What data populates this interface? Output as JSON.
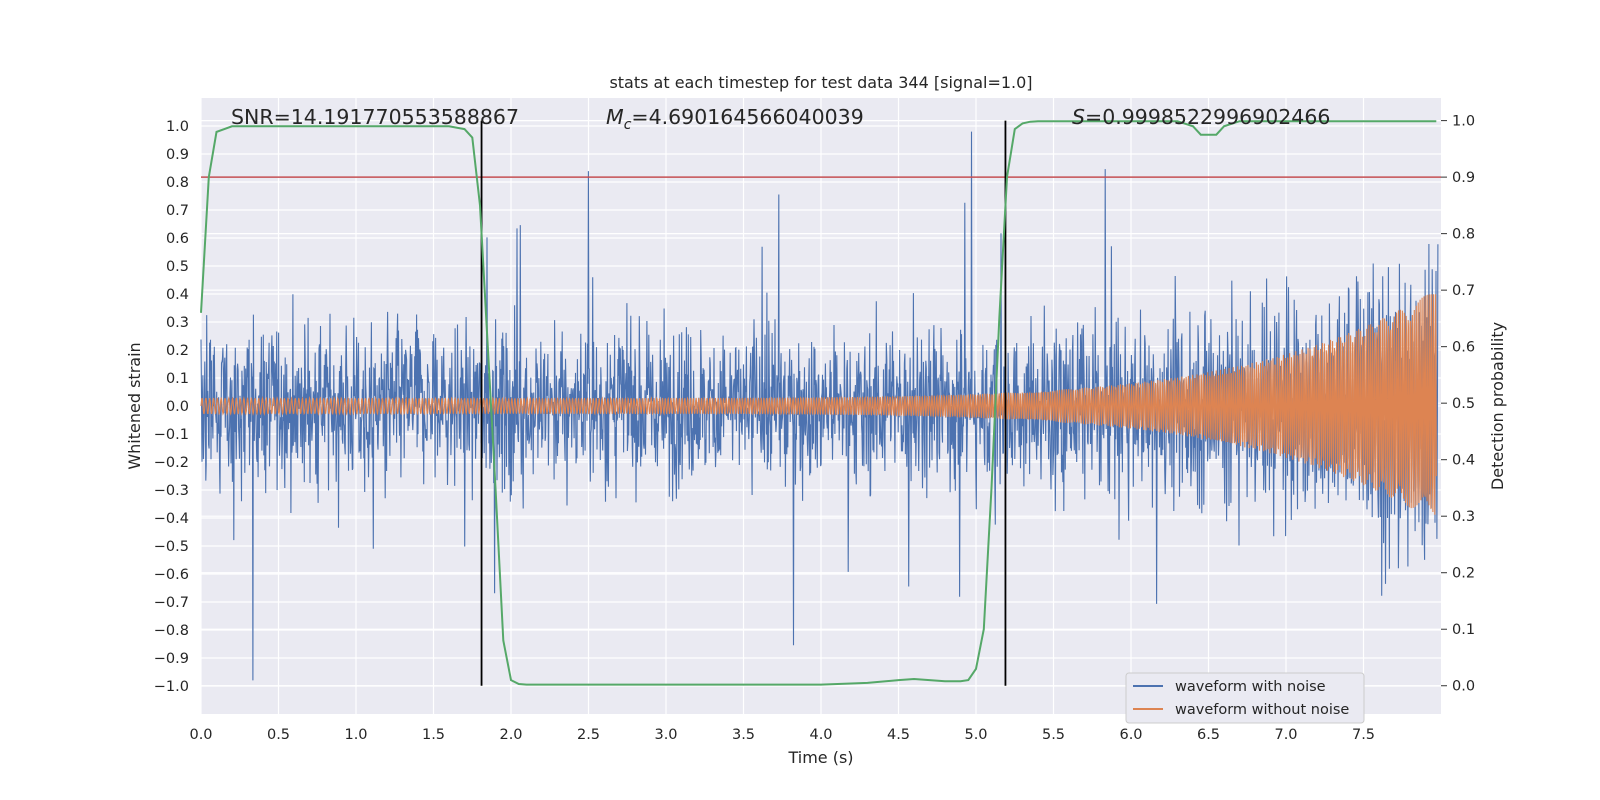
{
  "chart_data": {
    "type": "line",
    "title": "stats at each timestep for test data 344 [signal=1.0]",
    "xlabel": "Time (s)",
    "ylabel_left": "Whitened strain",
    "ylabel_right": "Detection probability",
    "xlim": [
      0.0,
      8.0
    ],
    "ylim_left": [
      -1.1,
      1.1
    ],
    "ylim_right": [
      -0.05,
      1.04
    ],
    "xticks": [
      "0.0",
      "0.5",
      "1.0",
      "1.5",
      "2.0",
      "2.5",
      "3.0",
      "3.5",
      "4.0",
      "4.5",
      "5.0",
      "5.5",
      "6.0",
      "6.5",
      "7.0",
      "7.5"
    ],
    "yticks_left": [
      "1.0",
      "0.9",
      "0.8",
      "0.7",
      "0.6",
      "0.5",
      "0.4",
      "0.3",
      "0.2",
      "0.1",
      "0.0",
      "−0.1",
      "−0.2",
      "−0.3",
      "−0.4",
      "−0.5",
      "−0.6",
      "−0.7",
      "−0.8",
      "−0.9",
      "−1.0"
    ],
    "yticks_right": [
      "1.0",
      "0.9",
      "0.8",
      "0.7",
      "0.6",
      "0.5",
      "0.4",
      "0.3",
      "0.2",
      "0.1",
      "0.0"
    ],
    "grid": true,
    "legend_position": "lower-right",
    "annotations": {
      "snr": "SNR=14.191770553588867",
      "mc_symbol": "M",
      "mc_sub": "c",
      "mc_value": "=4.690164566040039",
      "s_symbol": "S",
      "s_value": "=0.9998522996902466"
    },
    "threshold_line": {
      "y": 0.9,
      "axis": "right",
      "color": "#c44e52"
    },
    "vertical_markers": [
      1.81,
      5.19
    ],
    "series": [
      {
        "name": "waveform with noise",
        "color": "#4c72b0",
        "axis": "left",
        "description": "noisy whitened strain, spans roughly -0.98 to 0.98"
      },
      {
        "name": "waveform without noise",
        "color": "#dd8452",
        "axis": "left",
        "description": "chirp signal, amplitude grows from ~0.03 to ~0.42 near t=7.9"
      },
      {
        "name": "Detection probability",
        "color": "#55a868",
        "axis": "right",
        "x": [
          0.0,
          0.05,
          0.1,
          0.2,
          0.5,
          1.0,
          1.5,
          1.6,
          1.7,
          1.75,
          1.8,
          1.85,
          1.9,
          1.95,
          2.0,
          2.05,
          2.1,
          2.5,
          3.0,
          3.5,
          4.0,
          4.3,
          4.5,
          4.6,
          4.7,
          4.8,
          4.9,
          4.95,
          5.0,
          5.05,
          5.1,
          5.15,
          5.2,
          5.25,
          5.3,
          5.35,
          5.4,
          6.0,
          6.3,
          6.4,
          6.45,
          6.5,
          6.55,
          6.6,
          6.7,
          7.0,
          7.5,
          7.97
        ],
        "y": [
          0.66,
          0.9,
          0.98,
          0.99,
          0.99,
          0.99,
          0.99,
          0.99,
          0.985,
          0.97,
          0.85,
          0.6,
          0.35,
          0.08,
          0.01,
          0.003,
          0.002,
          0.002,
          0.002,
          0.002,
          0.002,
          0.005,
          0.01,
          0.012,
          0.01,
          0.008,
          0.008,
          0.01,
          0.03,
          0.1,
          0.35,
          0.65,
          0.9,
          0.985,
          0.995,
          0.998,
          0.999,
          0.999,
          0.999,
          0.99,
          0.975,
          0.975,
          0.975,
          0.99,
          0.999,
          0.999,
          0.999,
          0.999
        ]
      }
    ]
  }
}
